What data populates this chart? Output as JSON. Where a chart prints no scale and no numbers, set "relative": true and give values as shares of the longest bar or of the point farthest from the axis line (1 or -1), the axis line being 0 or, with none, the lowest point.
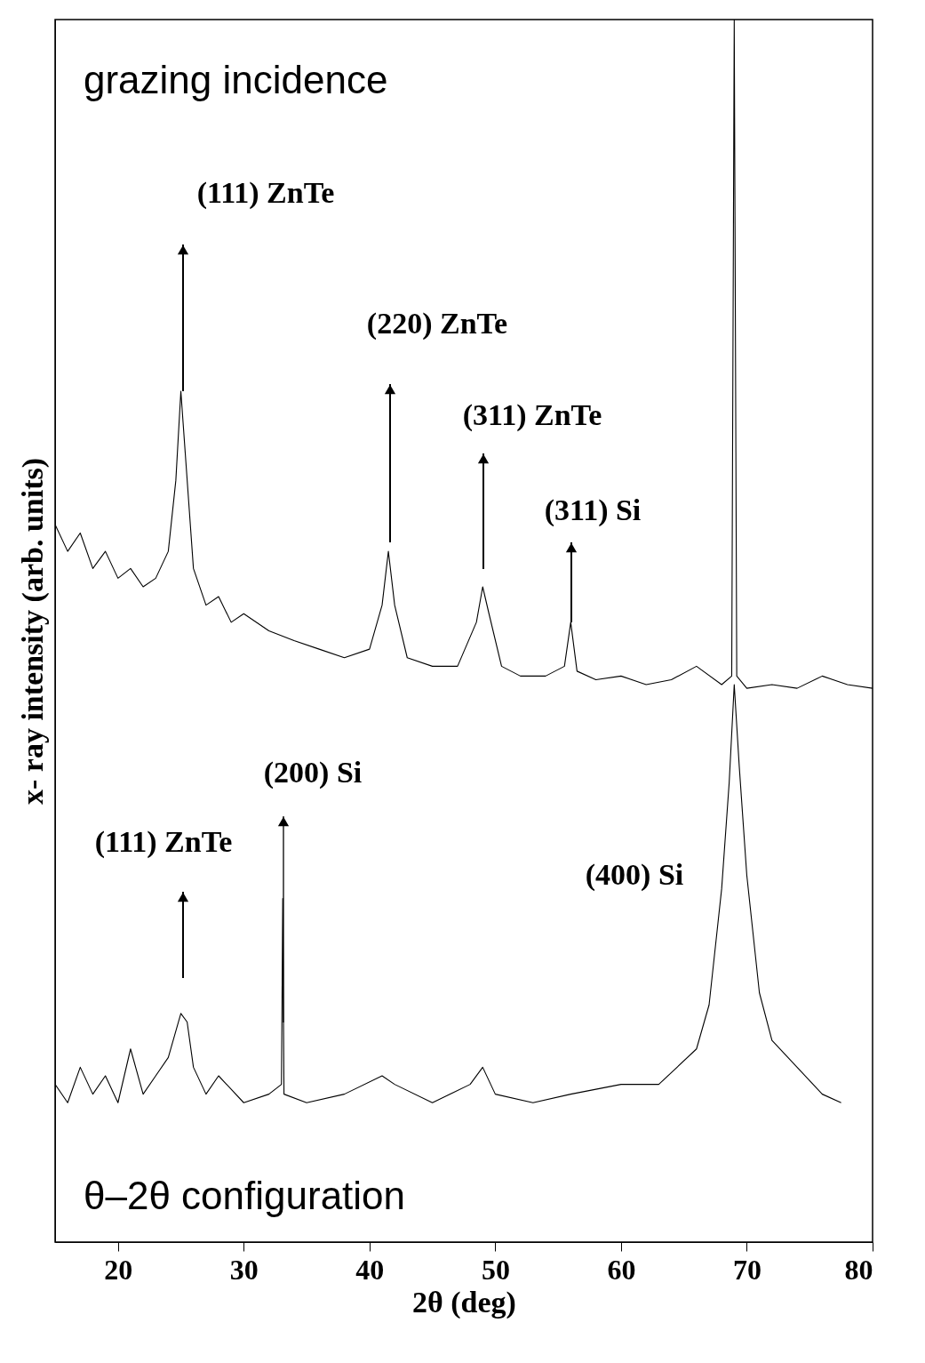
{
  "chart_data": {
    "type": "line",
    "relative": true,
    "xlabel": "2θ (deg)",
    "ylabel": "x- ray intensity (arb. units)",
    "xlim": [
      15,
      80
    ],
    "xticks": [
      20,
      30,
      40,
      50,
      60,
      70,
      80
    ],
    "grid": false,
    "legend": false,
    "marker": "none",
    "line_style": "solid",
    "series": [
      {
        "color": "#000000",
        "x": [
          15,
          16,
          17,
          18,
          19,
          20,
          21,
          22,
          23,
          24,
          24.6,
          25,
          25.4,
          26,
          27,
          28,
          29,
          30,
          32,
          34,
          36,
          38,
          40,
          41,
          41.5,
          42,
          43,
          45,
          47,
          48.5,
          49,
          49.5,
          50.5,
          52,
          54,
          55.5,
          56,
          56.5,
          58,
          60,
          62,
          64,
          66,
          68,
          68.8,
          69,
          69.2,
          70,
          72,
          74,
          76,
          78,
          80
        ],
        "values": [
          0.587,
          0.565,
          0.58,
          0.551,
          0.565,
          0.543,
          0.551,
          0.536,
          0.543,
          0.565,
          0.623,
          0.696,
          0.638,
          0.551,
          0.521,
          0.528,
          0.507,
          0.514,
          0.5,
          0.492,
          0.485,
          0.478,
          0.485,
          0.521,
          0.565,
          0.521,
          0.478,
          0.471,
          0.471,
          0.507,
          0.536,
          0.514,
          0.471,
          0.463,
          0.463,
          0.471,
          0.507,
          0.467,
          0.46,
          0.463,
          0.456,
          0.46,
          0.471,
          0.456,
          0.463,
          1,
          0.463,
          0.453,
          0.456,
          0.453,
          0.463,
          0.456,
          0.453
        ]
      },
      {
        "color": "#000000",
        "x": [
          15,
          16,
          17,
          18,
          19,
          20,
          21,
          22,
          23,
          24,
          25,
          25.5,
          26,
          27,
          28,
          30,
          32,
          33,
          33.1,
          33.2,
          35,
          38,
          41,
          42,
          45,
          48,
          49,
          50,
          53,
          56,
          60,
          63,
          66,
          67,
          68,
          68.6,
          69,
          69.4,
          70,
          71,
          72,
          74,
          76,
          77.5
        ],
        "values": [
          0.129,
          0.114,
          0.143,
          0.121,
          0.136,
          0.114,
          0.158,
          0.121,
          0.136,
          0.151,
          0.187,
          0.18,
          0.143,
          0.121,
          0.136,
          0.114,
          0.121,
          0.129,
          0.281,
          0.121,
          0.114,
          0.121,
          0.136,
          0.129,
          0.114,
          0.129,
          0.143,
          0.121,
          0.114,
          0.121,
          0.129,
          0.129,
          0.158,
          0.194,
          0.289,
          0.376,
          0.456,
          0.389,
          0.3,
          0.204,
          0.165,
          0.143,
          0.121,
          0.114
        ]
      }
    ],
    "annotations": [
      "grazing incidence",
      "θ–2θ configuration",
      "(400) Si",
      "(111) ZnTe",
      "(220) ZnTe",
      "(311) ZnTe",
      "(311) Si",
      "(200) Si",
      "(111) ZnTe"
    ]
  }
}
